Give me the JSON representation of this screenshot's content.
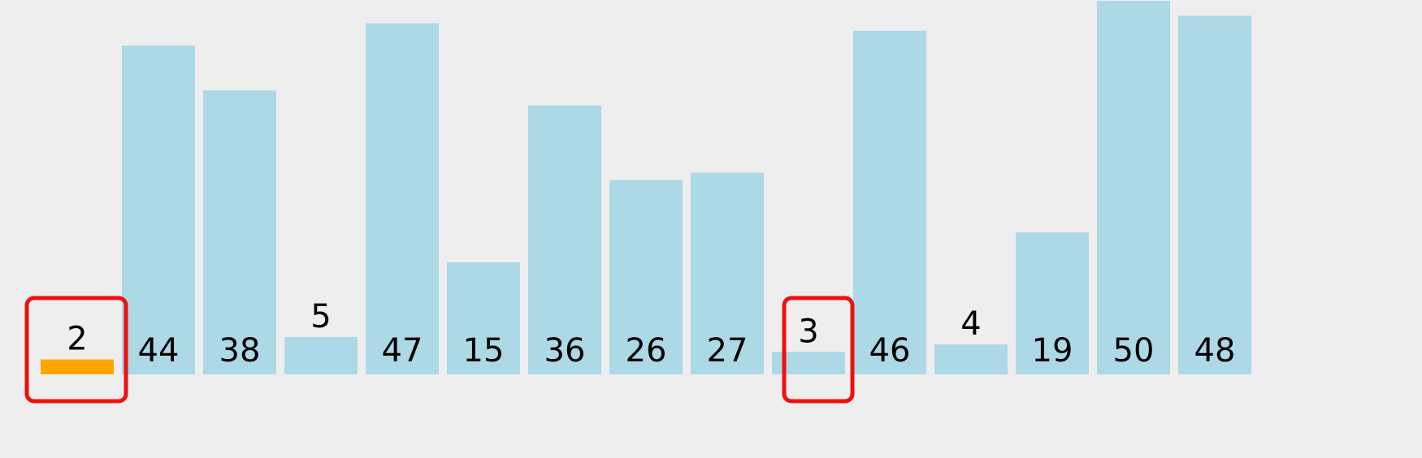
{
  "chart_data": {
    "type": "bar",
    "values": [
      2,
      44,
      38,
      5,
      47,
      15,
      36,
      26,
      27,
      3,
      46,
      4,
      19,
      50,
      48
    ],
    "highlighted_indices": [
      0,
      9
    ],
    "active_index": 0,
    "ylim": [
      0,
      50
    ],
    "grid": false,
    "legend": "none",
    "colors": {
      "bar": "#add8e6",
      "active_bar": "#ffa500",
      "highlight_border": "#ee1111",
      "label": "#000000",
      "background": "#eeeeee"
    }
  }
}
